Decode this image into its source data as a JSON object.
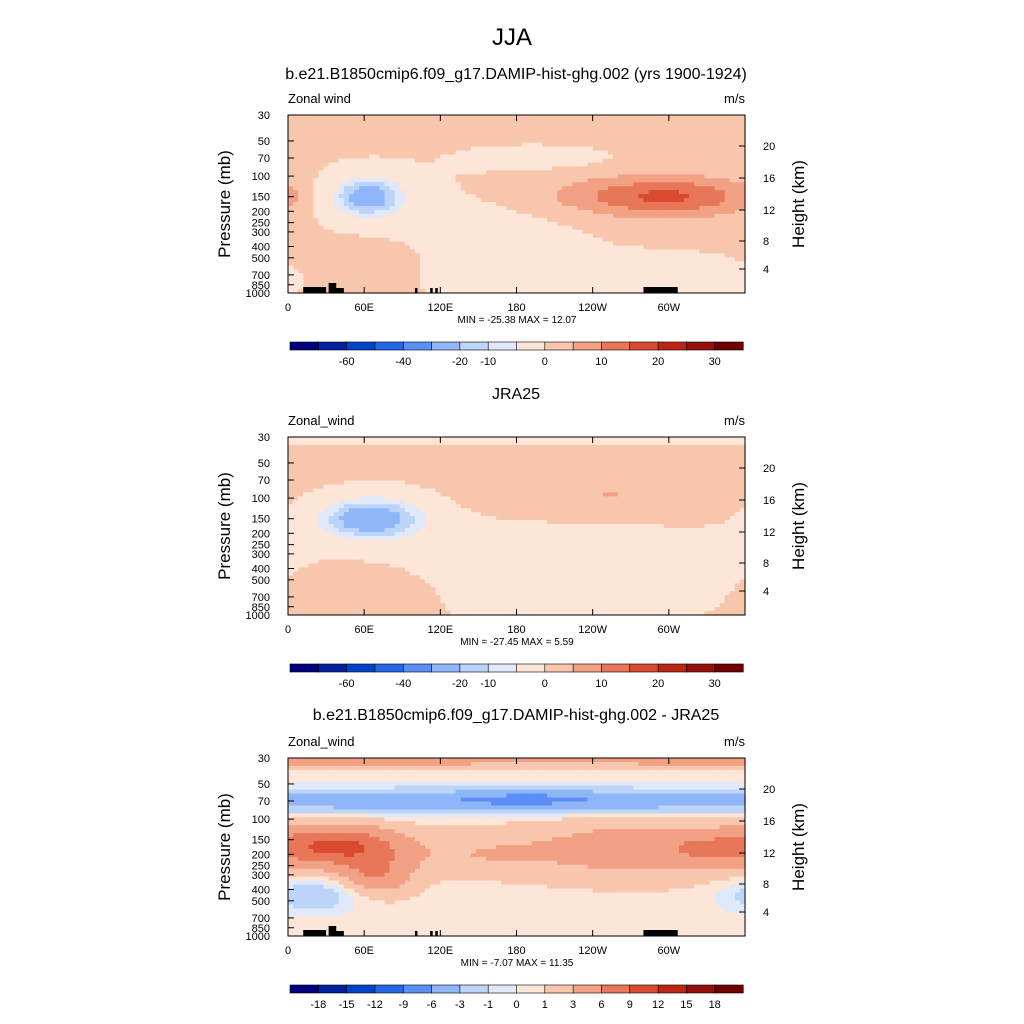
{
  "figure": {
    "title": "JJA",
    "panel_top_title": "b.e21.B1850cmip6.f09_g17.DAMIP-hist-ghg.002 (yrs 1900-1924)",
    "panel_mid_title": "JRA25",
    "panel_bot_title": "b.e21.B1850cmip6.f09_g17.DAMIP-hist-ghg.002 - JRA25"
  },
  "chart_data": [
    {
      "type": "heatmap",
      "title": "b.e21.B1850cmip6.f09_g17.DAMIP-hist-ghg.002 (yrs 1900-1924)",
      "variable_label": "Zonal wind",
      "units": "m/s",
      "ylabel": "Pressure (mb)",
      "ylabel_right": "Height (km)",
      "x_ticks": [
        "0",
        "60E",
        "120E",
        "180",
        "120W",
        "60W"
      ],
      "y_ticks": [
        "30",
        "50",
        "70",
        "100",
        "150",
        "200",
        "250",
        "300",
        "400",
        "500",
        "700",
        "850",
        "1000"
      ],
      "y_ticks_right": [
        "20",
        "16",
        "12",
        "8",
        "4"
      ],
      "stats_text": "MIN = -25.38  MAX =  12.07",
      "min": -25.38,
      "max": 12.07,
      "colorbar_labels": [
        "-60",
        "-40",
        "-20",
        "-10",
        "0",
        "10",
        "20",
        "30"
      ],
      "colorbar_colors": [
        "#00007f",
        "#0021a0",
        "#0043c6",
        "#2366e6",
        "#5a8ff5",
        "#8fb6f8",
        "#bcd4f8",
        "#dfe9fa",
        "#fde6d8",
        "#f8c6ad",
        "#f2a184",
        "#e8775a",
        "#d94a30",
        "#bc2514",
        "#95100a",
        "#700000"
      ],
      "features": [
        {
          "desc": "negative core",
          "lon": 60,
          "p": 150,
          "value": -25
        },
        {
          "desc": "positive core",
          "lon": 300,
          "p": 150,
          "value": 12
        }
      ]
    },
    {
      "type": "heatmap",
      "title": "JRA25",
      "variable_label": "Zonal_wind",
      "units": "m/s",
      "ylabel": "Pressure (mb)",
      "ylabel_right": "Height (km)",
      "x_ticks": [
        "0",
        "60E",
        "120E",
        "180",
        "120W",
        "60W"
      ],
      "y_ticks": [
        "30",
        "50",
        "70",
        "100",
        "150",
        "200",
        "250",
        "300",
        "400",
        "500",
        "700",
        "850",
        "1000"
      ],
      "y_ticks_right": [
        "20",
        "16",
        "12",
        "8",
        "4"
      ],
      "stats_text": "MIN = -27.45  MAX =   5.59",
      "min": -27.45,
      "max": 5.59,
      "colorbar_labels": [
        "-60",
        "-40",
        "-20",
        "-10",
        "0",
        "10",
        "20",
        "30"
      ],
      "colorbar_colors": [
        "#00007f",
        "#0021a0",
        "#0043c6",
        "#2366e6",
        "#5a8ff5",
        "#8fb6f8",
        "#bcd4f8",
        "#dfe9fa",
        "#fde6d8",
        "#f8c6ad",
        "#f2a184",
        "#e8775a",
        "#d94a30",
        "#bc2514",
        "#95100a",
        "#700000"
      ],
      "features": [
        {
          "desc": "negative core",
          "lon": 65,
          "p": 150,
          "value": -27
        },
        {
          "desc": "positive region",
          "lon": 250,
          "p": 100,
          "value": 5
        }
      ]
    },
    {
      "type": "heatmap",
      "title": "b.e21.B1850cmip6.f09_g17.DAMIP-hist-ghg.002 - JRA25",
      "variable_label": "Zonal_wind",
      "units": "m/s",
      "ylabel": "Pressure (mb)",
      "ylabel_right": "Height (km)",
      "x_ticks": [
        "0",
        "60E",
        "120E",
        "180",
        "120W",
        "60W"
      ],
      "y_ticks": [
        "30",
        "50",
        "70",
        "100",
        "150",
        "200",
        "250",
        "300",
        "400",
        "500",
        "700",
        "850",
        "1000"
      ],
      "y_ticks_right": [
        "20",
        "16",
        "12",
        "8",
        "4"
      ],
      "stats_text": "MIN = -7.07  MAX =  11.35",
      "min": -7.07,
      "max": 11.35,
      "colorbar_labels": [
        "-18",
        "-15",
        "-12",
        "-9",
        "-6",
        "-3",
        "-1",
        "0",
        "1",
        "3",
        "6",
        "9",
        "12",
        "15",
        "18"
      ],
      "colorbar_colors": [
        "#00007f",
        "#0021a0",
        "#0043c6",
        "#2366e6",
        "#5a8ff5",
        "#8fb6f8",
        "#bcd4f8",
        "#dfe9fa",
        "#fde6d8",
        "#f8c6ad",
        "#f2a184",
        "#e8775a",
        "#d94a30",
        "#bc2514",
        "#95100a",
        "#700000"
      ],
      "features": [
        {
          "desc": "negative band",
          "lon": 180,
          "p": 70,
          "value": -7
        },
        {
          "desc": "positive core",
          "lon": 40,
          "p": 170,
          "value": 11
        }
      ]
    }
  ]
}
